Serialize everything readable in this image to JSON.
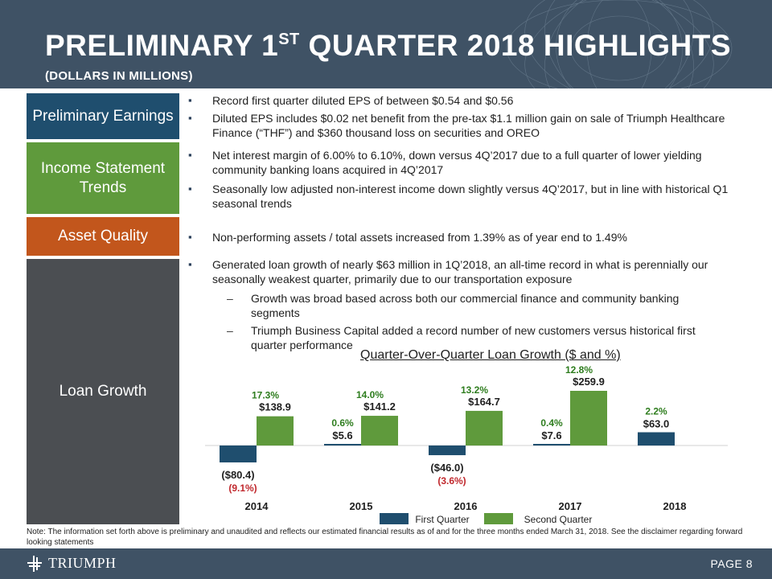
{
  "header": {
    "title_main": "PRELIMINARY 1",
    "title_sup": "ST",
    "title_rest": " QUARTER 2018 HIGHLIGHTS",
    "subtitle": "(DOLLARS IN MILLIONS)"
  },
  "categories": {
    "earnings": "Preliminary Earnings",
    "income": "Income Statement Trends",
    "asset": "Asset Quality",
    "loan": "Loan Growth"
  },
  "bullets": {
    "b1": "Record first quarter diluted EPS of between $0.54 and $0.56",
    "b2": "Diluted EPS includes $0.02 net benefit from the pre-tax $1.1 million gain on sale of Triumph Healthcare Finance (“THF”) and $360 thousand loss on securities and OREO",
    "b3": "Net interest margin of 6.00% to 6.10%, down versus 4Q’2017 due to a full quarter of lower yielding community banking loans acquired in 4Q’2017",
    "b4": "Seasonally low adjusted non-interest income down slightly versus 4Q’2017, but in line with historical Q1 seasonal trends",
    "b5": "Non-performing assets / total assets increased from 1.39% as of year end to 1.49%",
    "b6": "Generated loan growth of nearly $63 million in 1Q’2018, an all-time record in what is perennially our seasonally weakest quarter, primarily due to our transportation exposure",
    "s1": "Growth was broad based across both our commercial finance and community banking segments",
    "s2": "Triumph Business Capital added a record number of new customers versus historical first quarter performance"
  },
  "chart_data": {
    "type": "bar",
    "title": "Quarter-Over-Quarter Loan Growth ($ and %)",
    "categories": [
      "2014",
      "2015",
      "2016",
      "2017",
      "2018"
    ],
    "series": [
      {
        "name": "First Quarter",
        "color": "#1f4e6e",
        "values": [
          -80.4,
          5.6,
          -46.0,
          7.6,
          63.0
        ],
        "value_labels": [
          "($80.4)",
          "$5.6",
          "($46.0)",
          "$7.6",
          "$63.0"
        ],
        "pct_labels": [
          "(9.1%)",
          "0.6%",
          "(3.6%)",
          "0.4%",
          "2.2%"
        ]
      },
      {
        "name": "Second Quarter",
        "color": "#5f9a3c",
        "values": [
          138.9,
          141.2,
          164.7,
          259.9,
          null
        ],
        "value_labels": [
          "$138.9",
          "$141.2",
          "$164.7",
          "$259.9",
          ""
        ],
        "pct_labels": [
          "17.3%",
          "14.0%",
          "13.2%",
          "12.8%",
          ""
        ]
      }
    ],
    "xlabel": "",
    "ylabel": "",
    "legend": [
      "First Quarter",
      "Second Quarter"
    ],
    "legend_position": "bottom",
    "colors": {
      "positive_pct": "#2e7d1e",
      "negative_pct": "#c0282d"
    }
  },
  "note": "Note: The information set forth above is preliminary and unaudited and reflects our estimated financial results as of and for the three months ended March 31, 2018.  See the disclaimer regarding forward looking statements",
  "footer": {
    "logo_text": "TRIUMPH",
    "page": "PAGE 8"
  }
}
